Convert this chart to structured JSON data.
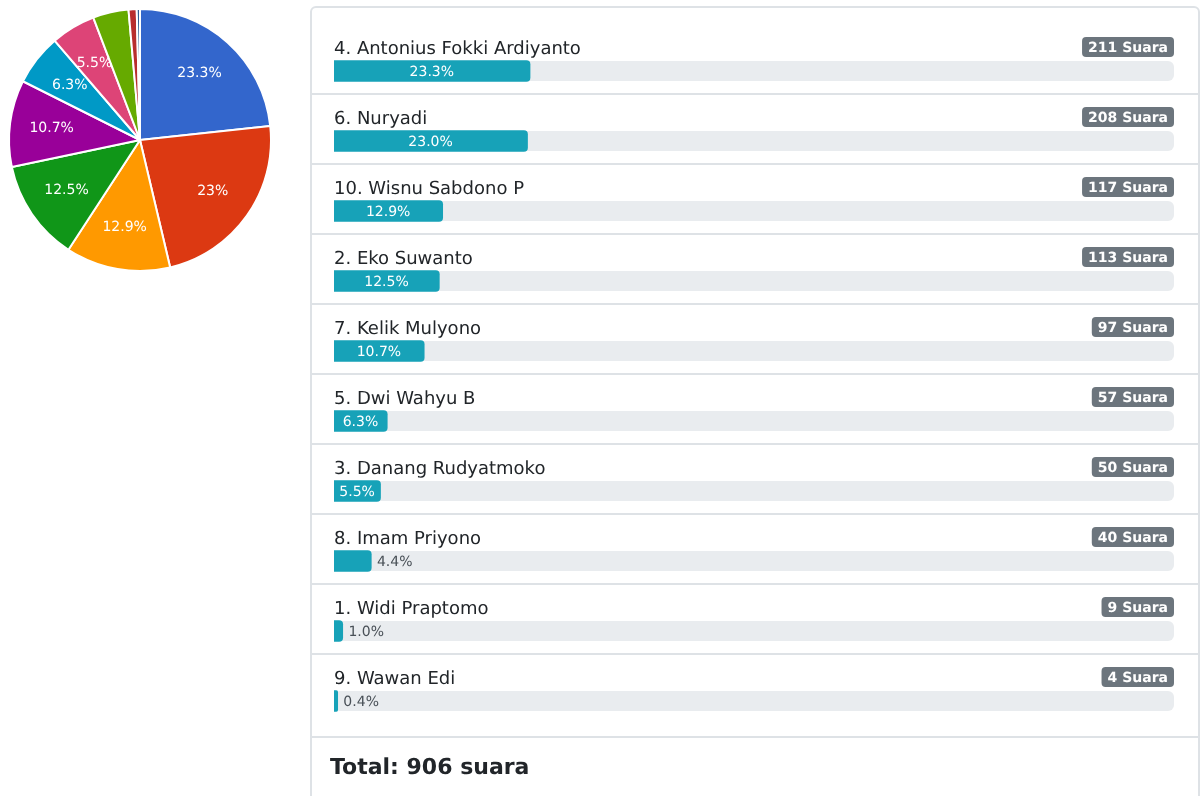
{
  "chart_data": [
    {
      "type": "pie",
      "categories": [
        null,
        null,
        null,
        null,
        null,
        null,
        null,
        null,
        null,
        null
      ],
      "values": [
        23.3,
        23,
        12.9,
        12.5,
        10.7,
        6.3,
        5.5,
        4.4,
        1.0,
        0.4
      ],
      "value_labels": [
        "23.3%",
        "23%",
        "12.9%",
        "12.5%",
        "10.7%",
        "6.3%",
        "5.5%",
        null,
        null,
        null
      ],
      "colors": [
        "#3366cc",
        "#dc3912",
        "#ff9900",
        "#109618",
        "#990099",
        "#0099c6",
        "#dd4477",
        "#66aa00",
        "#b82e2e",
        "#316395"
      ],
      "legend": false
    },
    {
      "type": "bar",
      "orientation": "horizontal",
      "categories": [
        "4. Antonius Fokki Ardiyanto",
        "6. Nuryadi",
        "10. Wisnu Sabdono P",
        "2. Eko Suwanto",
        "7. Kelik Mulyono",
        "5. Dwi Wahyu B",
        "3. Danang Rudyatmoko",
        "8. Imam Priyono",
        "1. Widi Praptomo",
        "9. Wawan Edi"
      ],
      "values": [
        23.3,
        23.0,
        12.9,
        12.5,
        10.7,
        6.3,
        5.5,
        4.4,
        1.0,
        0.4
      ],
      "value_labels": [
        "23.3%",
        "23.0%",
        "12.9%",
        "12.5%",
        "10.7%",
        "6.3%",
        "5.5%",
        "4.4%",
        "1.0%",
        "0.4%"
      ],
      "color": "#17a2b8",
      "xlim": [
        0,
        100
      ],
      "tick_labels": false,
      "legend": false,
      "annotations": [
        "211 Suara",
        "208 Suara",
        "117 Suara",
        "113 Suara",
        "97 Suara",
        "57 Suara",
        "50 Suara",
        "40 Suara",
        "9 Suara",
        "4 Suara",
        "Total: 906 suara"
      ]
    }
  ]
}
